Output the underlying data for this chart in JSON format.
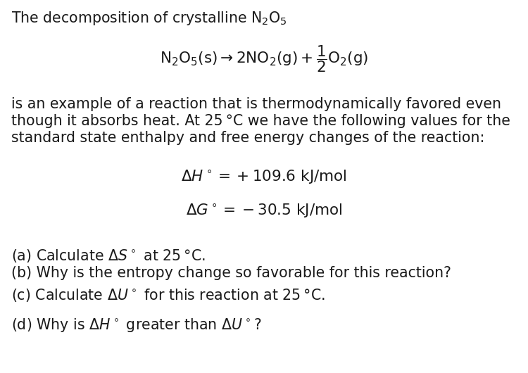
{
  "background_color": "#ffffff",
  "text_color": "#1a1a1a",
  "font_size_title": 14.8,
  "font_size_body": 14.8,
  "font_size_eq": 15.5,
  "font_size_thermo": 15.5,
  "font_size_parts": 14.8,
  "title_line": "The decomposition of crystalline $\\mathrm{N_2O_5}$",
  "eq_text": "$\\mathrm{N_2O_5(s) \\rightarrow 2NO_2(g) + \\dfrac{1}{2}O_2(g)}$",
  "body_line1": "is an example of a reaction that is thermodynamically favored even",
  "body_line2": "though it absorbs heat. At 25 °C we have the following values for the",
  "body_line3": "standard state enthalpy and free energy changes of the reaction:",
  "dH_text": "$\\Delta H^\\circ = +109.6\\ \\mathrm{kJ/mol}$",
  "dG_text": "$\\Delta G^\\circ = -30.5\\ \\mathrm{kJ/mol}$",
  "part_a": "(a) Calculate $\\Delta S^\\circ$ at 25 °C.",
  "part_b": "(b) Why is the entropy change so favorable for this reaction?",
  "part_c": "(c) Calculate $\\Delta U^\\circ$ for this reaction at 25 °C.",
  "part_d": "(d) Why is $\\Delta H^\\circ$ greater than $\\Delta U^\\circ$?"
}
